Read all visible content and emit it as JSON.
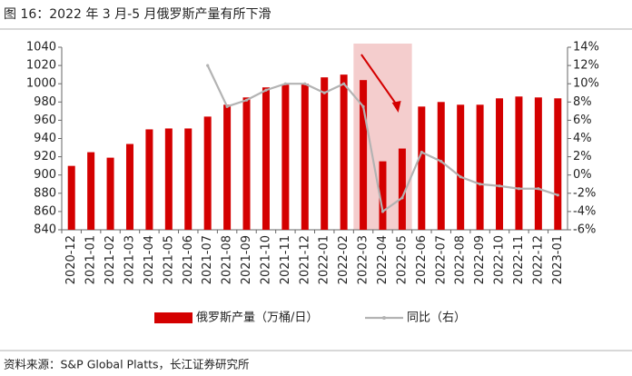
{
  "chart_data": {
    "type": "bar",
    "title": "图 16：2022 年 3 月-5 月俄罗斯产量有所下滑",
    "source": "资料来源：S&P Global Platts，长江证券研究所",
    "categories": [
      "2020-12",
      "2021-01",
      "2021-02",
      "2021-03",
      "2021-04",
      "2021-05",
      "2021-06",
      "2021-07",
      "2021-08",
      "2021-09",
      "2021-10",
      "2021-11",
      "2021-12",
      "2022-01",
      "2022-02",
      "2022-03",
      "2022-04",
      "2022-05",
      "2022-06",
      "2022-07",
      "2022-08",
      "2022-09",
      "2022-10",
      "2022-11",
      "2022-12",
      "2023-01"
    ],
    "series": [
      {
        "name": "俄罗斯产量（万桶/日）",
        "type": "bar",
        "color": "#d40000",
        "values": [
          910,
          925,
          919,
          934,
          950,
          951,
          951,
          964,
          977,
          985,
          996,
          999,
          1000,
          1007,
          1010,
          1004,
          915,
          929,
          975,
          980,
          977,
          977,
          984,
          986,
          985,
          984
        ]
      },
      {
        "name": "同比（右）",
        "type": "line",
        "axis": "y2",
        "color": "#b3b3b3",
        "values": [
          null,
          null,
          null,
          null,
          null,
          null,
          null,
          12,
          7.5,
          8.2,
          9.3,
          10,
          10,
          9,
          10,
          7.5,
          -4,
          -2.5,
          2.5,
          1.5,
          -0.2,
          -1,
          -1.2,
          -1.5,
          -1.5,
          -2.2
        ]
      }
    ],
    "ylim": [
      840,
      1040
    ],
    "yticks": [
      840,
      860,
      880,
      900,
      920,
      940,
      960,
      980,
      1000,
      1020,
      1040
    ],
    "y2lim": [
      -6,
      14
    ],
    "y2ticks": [
      {
        "value": -6,
        "label": "-6%"
      },
      {
        "value": -4,
        "label": "-4%"
      },
      {
        "value": -2,
        "label": "-2%"
      },
      {
        "value": 0,
        "label": "0%"
      },
      {
        "value": 2,
        "label": "2%"
      },
      {
        "value": 4,
        "label": "4%"
      },
      {
        "value": 6,
        "label": "6%"
      },
      {
        "value": 8,
        "label": "8%"
      },
      {
        "value": 10,
        "label": "10%"
      },
      {
        "value": 12,
        "label": "12%"
      },
      {
        "value": 14,
        "label": "14%"
      }
    ],
    "grid": false
  }
}
